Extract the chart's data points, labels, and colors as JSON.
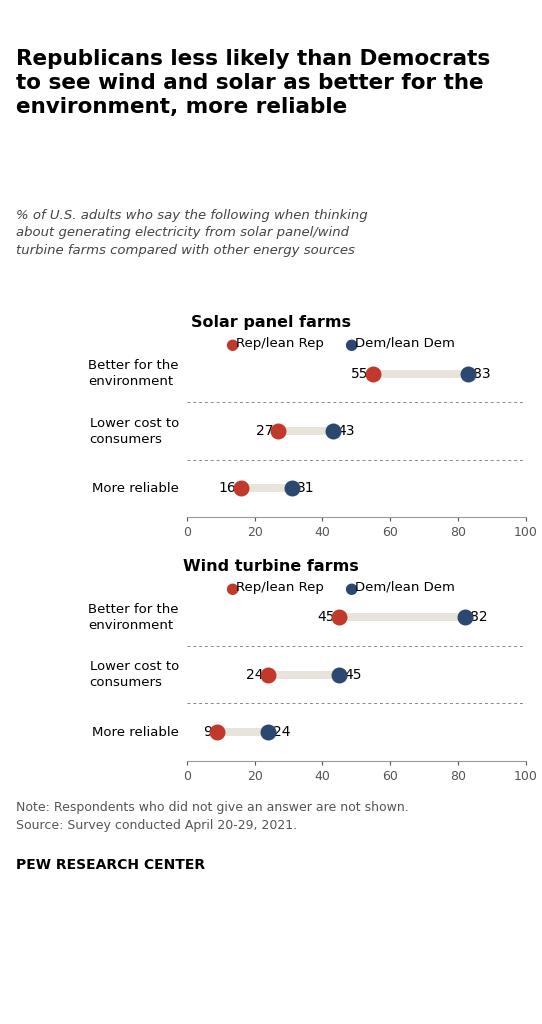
{
  "title": "Republicans less likely than Democrats\nto see wind and solar as better for the\nenvironment, more reliable",
  "subtitle": "% of U.S. adults who say the following when thinking\nabout generating electricity from solar panel/wind\nturbine farms compared with other energy sources",
  "solar_title": "Solar panel farms",
  "wind_title": "Wind turbine farms",
  "legend_rep": "Rep/lean Rep",
  "legend_dem": "Dem/lean Dem",
  "solar_categories": [
    "Better for the\nenvironment",
    "Lower cost to\nconsumers",
    "More reliable"
  ],
  "wind_categories": [
    "Better for the\nenvironment",
    "Lower cost to\nconsumers",
    "More reliable"
  ],
  "solar_rep": [
    55,
    27,
    16
  ],
  "solar_dem": [
    83,
    43,
    31
  ],
  "wind_rep": [
    45,
    24,
    9
  ],
  "wind_dem": [
    82,
    45,
    24
  ],
  "rep_color": "#C0392B",
  "dem_color": "#2C4770",
  "bar_color": "#E8E4DC",
  "xlim": [
    0,
    100
  ],
  "xticks": [
    0,
    20,
    40,
    60,
    80,
    100
  ],
  "note": "Note: Respondents who did not give an answer are not shown.\nSource: Survey conducted April 20-29, 2021.",
  "source_bold": "PEW RESEARCH CENTER",
  "bg_color": "#FFFFFF",
  "dot_size": 110,
  "top_line_color": "#333333"
}
